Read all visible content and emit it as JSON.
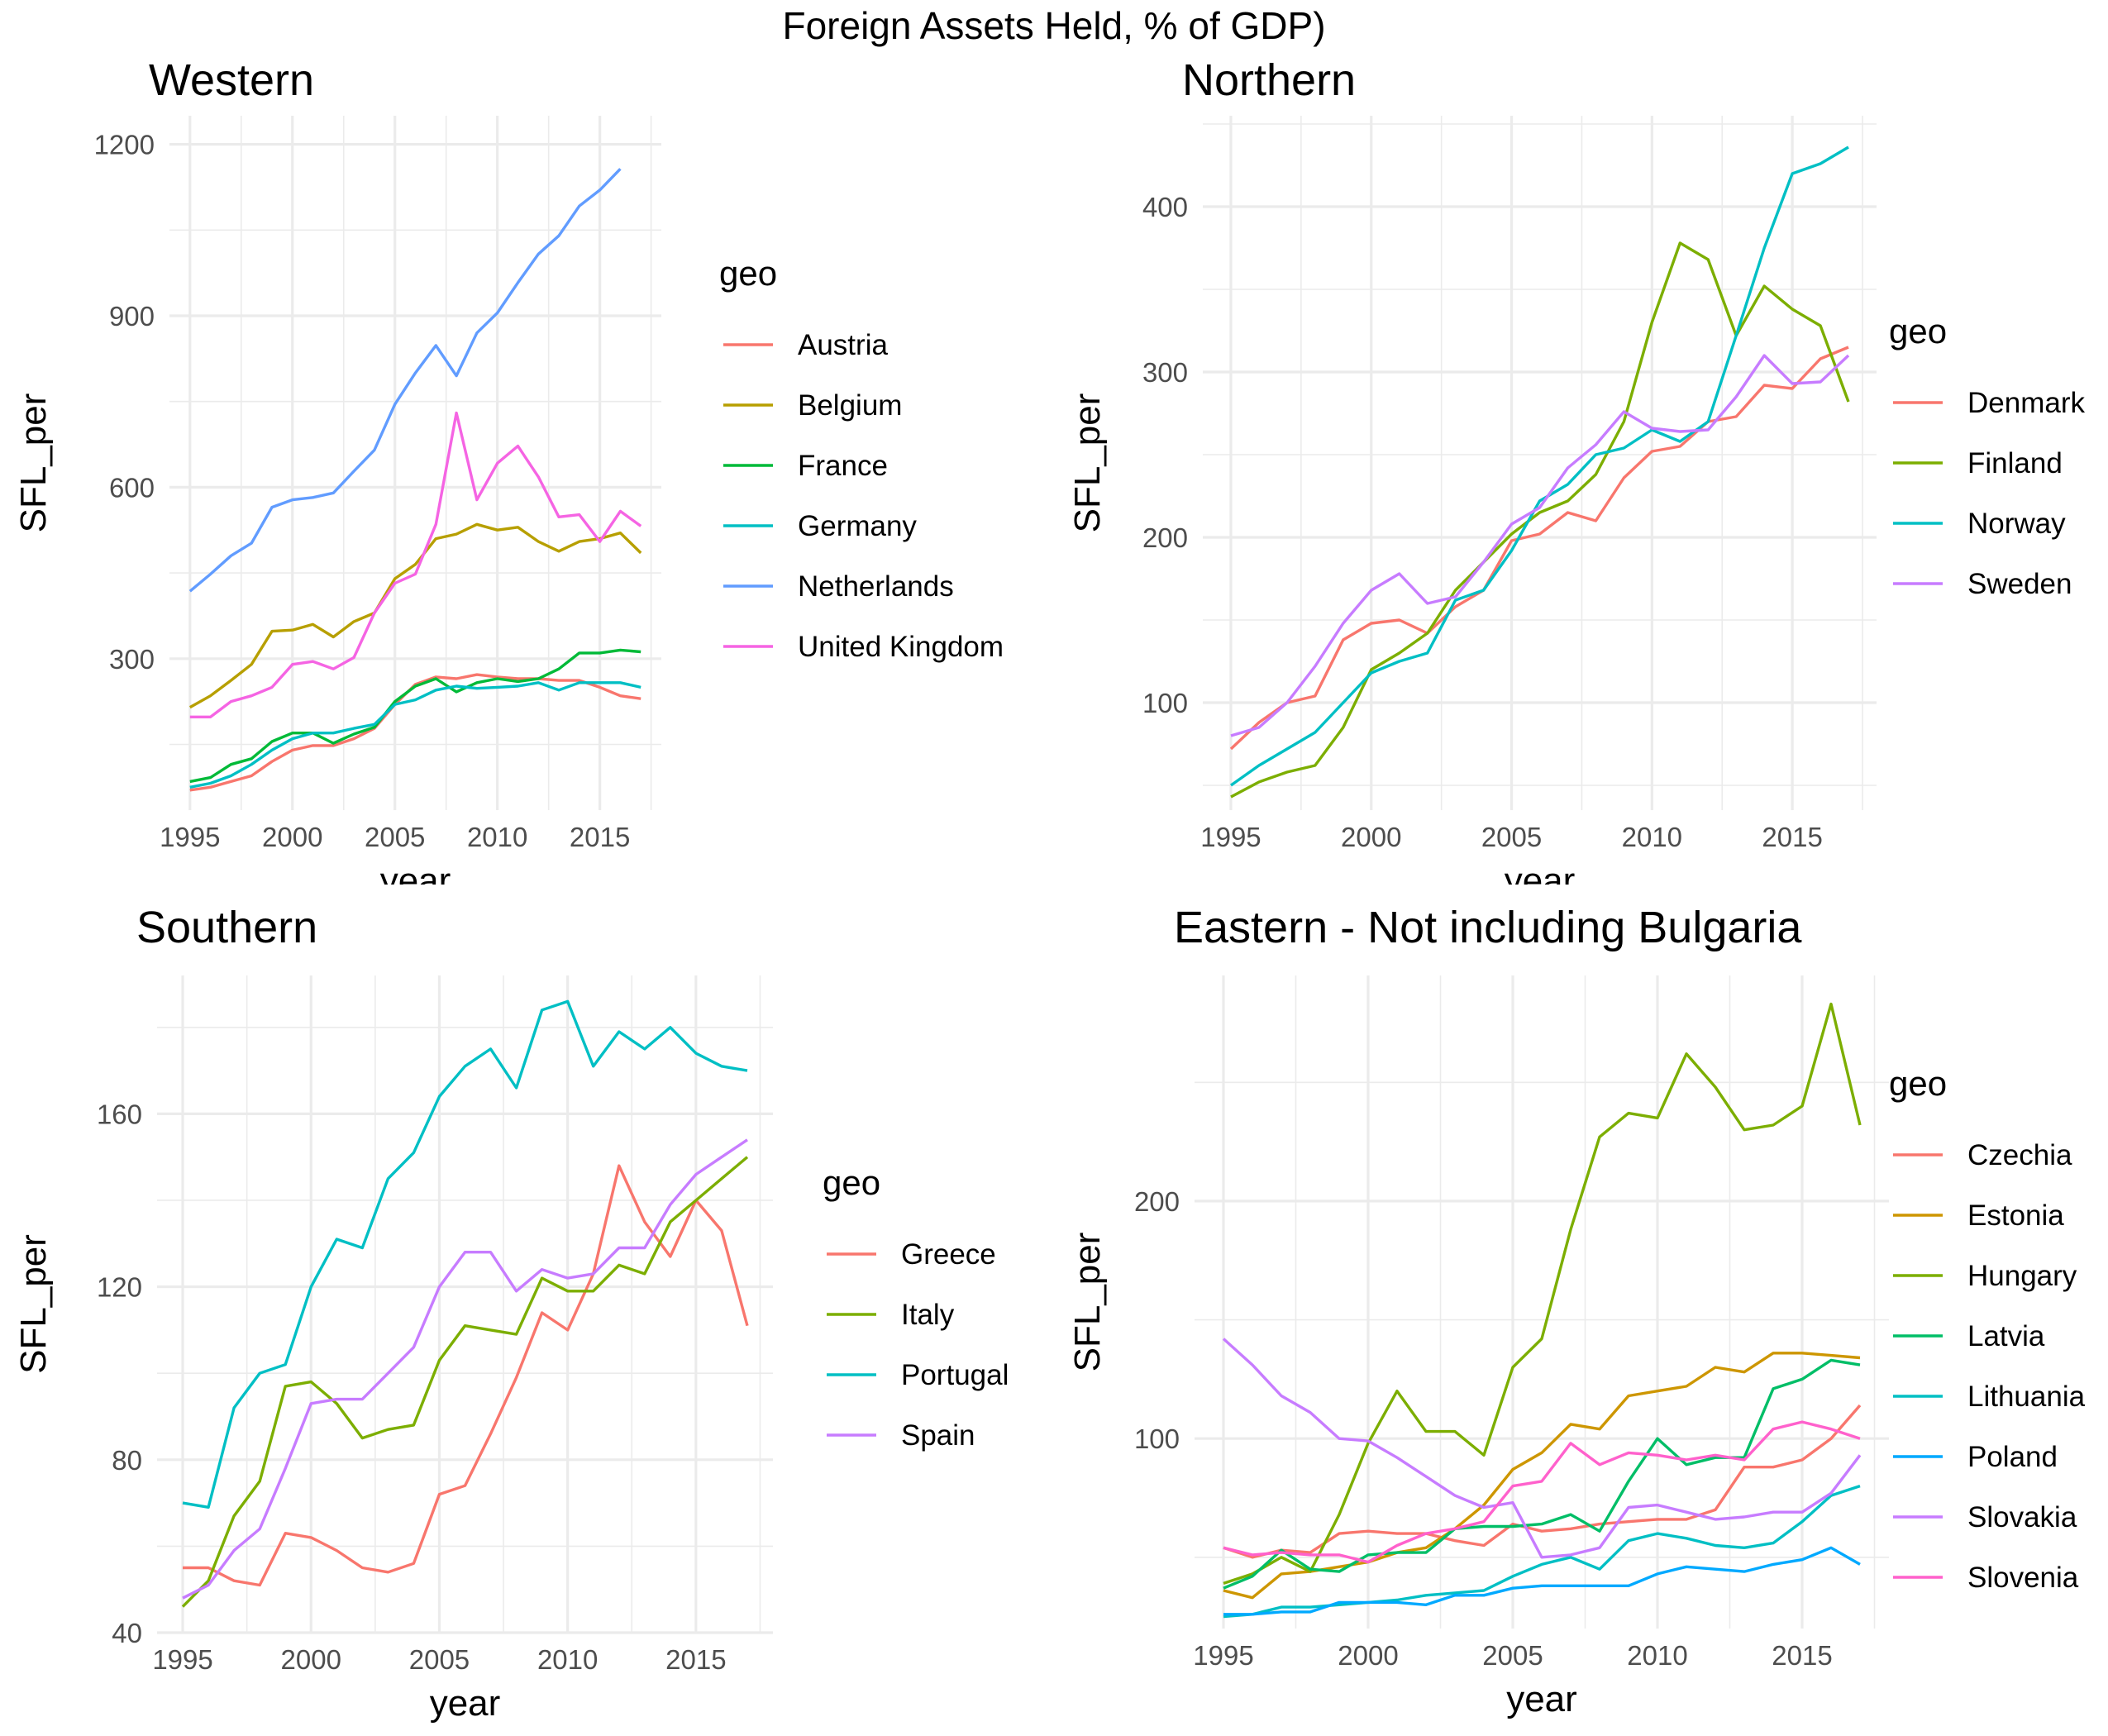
{
  "title": "Foreign Assets Held, % of GDP)",
  "chart_data": [
    {
      "type": "line",
      "title": "Western",
      "xlabel": "year",
      "ylabel": "SFL_per",
      "legend_title": "geo",
      "legend_position": "right",
      "grid": true,
      "xlim": [
        1994,
        2018
      ],
      "ylim": [
        35,
        1250
      ],
      "x_ticks": [
        1995,
        2000,
        2005,
        2010,
        2015
      ],
      "y_ticks": [
        300,
        600,
        900,
        1200
      ],
      "x": [
        1995,
        1996,
        1997,
        1998,
        1999,
        2000,
        2001,
        2002,
        2003,
        2004,
        2005,
        2006,
        2007,
        2008,
        2009,
        2010,
        2011,
        2012,
        2013,
        2014,
        2015,
        2016,
        2017
      ],
      "series": [
        {
          "name": "Austria",
          "color": "#F8766D",
          "values": [
            70,
            75,
            85,
            95,
            120,
            140,
            148,
            148,
            160,
            178,
            220,
            255,
            268,
            265,
            272,
            268,
            265,
            265,
            262,
            262,
            250,
            235,
            230
          ]
        },
        {
          "name": "Belgium",
          "color": "#B79F00",
          "values": [
            215,
            235,
            262,
            290,
            348,
            350,
            360,
            338,
            365,
            380,
            440,
            465,
            510,
            518,
            535,
            525,
            530,
            505,
            488,
            505,
            510,
            520,
            485
          ]
        },
        {
          "name": "France",
          "color": "#00BA38",
          "values": [
            85,
            92,
            115,
            125,
            155,
            170,
            170,
            152,
            168,
            180,
            225,
            252,
            265,
            242,
            258,
            265,
            260,
            265,
            282,
            310,
            310,
            315,
            312
          ]
        },
        {
          "name": "Germany",
          "color": "#00BFC4",
          "values": [
            75,
            82,
            95,
            115,
            140,
            160,
            170,
            170,
            178,
            185,
            220,
            228,
            245,
            252,
            248,
            250,
            252,
            258,
            245,
            258,
            258,
            258,
            250
          ]
        },
        {
          "name": "Netherlands",
          "color": "#619CFF",
          "values": [
            418,
            448,
            480,
            502,
            565,
            578,
            582,
            590,
            628,
            665,
            745,
            800,
            848,
            795,
            870,
            905,
            958,
            1008,
            1040,
            1092,
            1120,
            1157,
            null
          ]
        },
        {
          "name": "United Kingdom",
          "color": "#F564E3",
          "values": [
            198,
            198,
            225,
            235,
            250,
            290,
            295,
            282,
            302,
            380,
            432,
            448,
            535,
            730,
            578,
            642,
            672,
            618,
            548,
            552,
            505,
            558,
            532
          ]
        }
      ]
    },
    {
      "type": "line",
      "title": "Northern",
      "xlabel": "year",
      "ylabel": "SFL_per",
      "legend_title": "geo",
      "legend_position": "right",
      "grid": true,
      "xlim": [
        1994,
        2018
      ],
      "ylim": [
        35,
        455
      ],
      "x_ticks": [
        1995,
        2000,
        2005,
        2010,
        2015
      ],
      "y_ticks": [
        100,
        200,
        300,
        400
      ],
      "x": [
        1995,
        1996,
        1997,
        1998,
        1999,
        2000,
        2001,
        2002,
        2003,
        2004,
        2005,
        2006,
        2007,
        2008,
        2009,
        2010,
        2011,
        2012,
        2013,
        2014,
        2015,
        2016,
        2017
      ],
      "series": [
        {
          "name": "Denmark",
          "color": "#F8766D",
          "values": [
            72,
            88,
            100,
            104,
            138,
            148,
            150,
            142,
            158,
            168,
            198,
            202,
            215,
            210,
            236,
            252,
            255,
            270,
            273,
            292,
            290,
            308,
            315
          ]
        },
        {
          "name": "Finland",
          "color": "#7CAE00",
          "values": [
            43,
            52,
            58,
            62,
            85,
            120,
            130,
            142,
            168,
            185,
            202,
            215,
            222,
            238,
            270,
            330,
            378,
            368,
            322,
            352,
            338,
            328,
            282
          ]
        },
        {
          "name": "Norway",
          "color": "#00BFC4",
          "values": [
            50,
            62,
            72,
            82,
            100,
            118,
            125,
            130,
            162,
            168,
            192,
            222,
            232,
            250,
            254,
            265,
            258,
            270,
            322,
            375,
            420,
            426,
            436
          ]
        },
        {
          "name": "Sweden",
          "color": "#C77CFF",
          "values": [
            80,
            85,
            100,
            122,
            148,
            168,
            178,
            160,
            164,
            185,
            208,
            218,
            242,
            256,
            276,
            266,
            264,
            265,
            285,
            310,
            293,
            294,
            310
          ]
        }
      ]
    },
    {
      "type": "line",
      "title": "Southern",
      "xlabel": "year",
      "ylabel": "SFL_per",
      "legend_title": "geo",
      "legend_position": "right",
      "grid": true,
      "xlim": [
        1994,
        2018
      ],
      "ylim": [
        40,
        192
      ],
      "x_ticks": [
        1995,
        2000,
        2005,
        2010,
        2015
      ],
      "y_ticks": [
        40,
        80,
        120,
        160
      ],
      "x": [
        1995,
        1996,
        1997,
        1998,
        1999,
        2000,
        2001,
        2002,
        2003,
        2004,
        2005,
        2006,
        2007,
        2008,
        2009,
        2010,
        2011,
        2012,
        2013,
        2014,
        2015,
        2016,
        2017
      ],
      "series": [
        {
          "name": "Greece",
          "color": "#F8766D",
          "values": [
            55,
            55,
            52,
            51,
            63,
            62,
            59,
            55,
            54,
            56,
            72,
            74,
            86,
            99,
            114,
            110,
            123,
            148,
            135,
            127,
            140,
            133,
            111
          ]
        },
        {
          "name": "Italy",
          "color": "#7CAE00",
          "values": [
            46,
            52,
            67,
            75,
            97,
            98,
            93,
            85,
            87,
            88,
            103,
            111,
            110,
            109,
            122,
            119,
            119,
            125,
            123,
            135,
            140,
            145,
            150
          ]
        },
        {
          "name": "Portugal",
          "color": "#00BFC4",
          "values": [
            70,
            69,
            92,
            100,
            102,
            120,
            131,
            129,
            145,
            151,
            164,
            171,
            175,
            166,
            184,
            186,
            171,
            179,
            175,
            180,
            174,
            171,
            170
          ]
        },
        {
          "name": "Spain",
          "color": "#C77CFF",
          "values": [
            48,
            51,
            59,
            64,
            78,
            93,
            94,
            94,
            100,
            106,
            120,
            128,
            128,
            119,
            124,
            122,
            123,
            129,
            129,
            139,
            146,
            150,
            154
          ]
        }
      ]
    },
    {
      "type": "line",
      "title": "Eastern - Not including Bulgaria",
      "xlabel": "year",
      "ylabel": "SFL_per",
      "legend_title": "geo",
      "legend_position": "right",
      "grid": true,
      "xlim": [
        1994,
        2018
      ],
      "ylim": [
        20,
        295
      ],
      "x_ticks": [
        1995,
        2000,
        2005,
        2010,
        2015
      ],
      "y_ticks": [
        100,
        200
      ],
      "x": [
        1995,
        1996,
        1997,
        1998,
        1999,
        2000,
        2001,
        2002,
        2003,
        2004,
        2005,
        2006,
        2007,
        2008,
        2009,
        2010,
        2011,
        2012,
        2013,
        2014,
        2015,
        2016,
        2017
      ],
      "series": [
        {
          "name": "Czechia",
          "color": "#F8766D",
          "values": [
            54,
            50,
            53,
            52,
            60,
            61,
            60,
            60,
            57,
            55,
            64,
            61,
            62,
            64,
            65,
            66,
            66,
            70,
            88,
            88,
            91,
            100,
            114
          ]
        },
        {
          "name": "Estonia",
          "color": "#CD9600",
          "values": [
            36,
            33,
            43,
            44,
            46,
            48,
            52,
            54,
            62,
            72,
            87,
            94,
            106,
            104,
            118,
            120,
            122,
            130,
            128,
            136,
            136,
            135,
            134
          ]
        },
        {
          "name": "Hungary",
          "color": "#7CAE00",
          "values": [
            39,
            43,
            50,
            44,
            68,
            98,
            120,
            103,
            103,
            93,
            130,
            142,
            188,
            227,
            237,
            235,
            262,
            248,
            230,
            232,
            240,
            283,
            232
          ]
        },
        {
          "name": "Latvia",
          "color": "#00BE67",
          "values": [
            37,
            42,
            53,
            45,
            44,
            51,
            52,
            52,
            62,
            63,
            63,
            64,
            68,
            61,
            82,
            100,
            89,
            92,
            92,
            121,
            125,
            133,
            131
          ]
        },
        {
          "name": "Lithuania",
          "color": "#00BFC4",
          "values": [
            25,
            26,
            29,
            29,
            30,
            31,
            32,
            34,
            35,
            36,
            42,
            47,
            50,
            45,
            57,
            60,
            58,
            55,
            54,
            56,
            65,
            76,
            80
          ]
        },
        {
          "name": "Poland",
          "color": "#00A9FF",
          "values": [
            26,
            26,
            27,
            27,
            31,
            31,
            31,
            30,
            34,
            34,
            37,
            38,
            38,
            38,
            38,
            43,
            46,
            45,
            44,
            47,
            49,
            54,
            47
          ]
        },
        {
          "name": "Slovakia",
          "color": "#C77CFF",
          "values": [
            142,
            131,
            118,
            111,
            100,
            99,
            92,
            84,
            76,
            71,
            73,
            50,
            51,
            54,
            71,
            72,
            69,
            66,
            67,
            69,
            69,
            77,
            93
          ]
        },
        {
          "name": "Slovenia",
          "color": "#FF61CC",
          "values": [
            54,
            51,
            52,
            51,
            51,
            48,
            55,
            60,
            62,
            65,
            80,
            82,
            98,
            89,
            94,
            93,
            91,
            93,
            91,
            104,
            107,
            104,
            100
          ]
        }
      ]
    }
  ]
}
